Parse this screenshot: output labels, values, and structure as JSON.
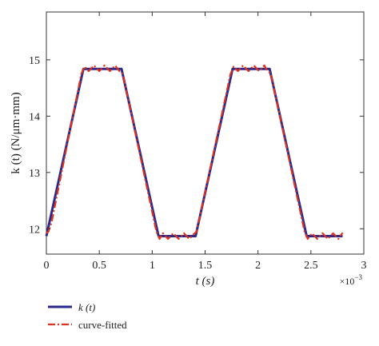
{
  "chart_data": {
    "type": "line",
    "xlabel": "t (s)",
    "ylabel": "k (t) (N/μm·mm)",
    "x_exponent_label": "×10",
    "x_exponent_power": "−3",
    "xlim": [
      0,
      3
    ],
    "ylim": [
      11.55,
      15.85
    ],
    "x_ticks": [
      0,
      0.5,
      1,
      1.5,
      2,
      2.5,
      3
    ],
    "x_tick_labels": [
      "0",
      "0.5",
      "1",
      "1.5",
      "2",
      "2.5",
      "3"
    ],
    "y_ticks": [
      12,
      13,
      14,
      15
    ],
    "y_tick_labels": [
      "12",
      "13",
      "14",
      "15"
    ],
    "grid": false,
    "legend_position": "bottom-left, below plot",
    "series": [
      {
        "name": "k (t)",
        "color": "#2b2a8c",
        "style": "solid",
        "x": [
          0,
          0.35,
          0.71,
          1.06,
          1.41,
          1.76,
          2.11,
          2.46,
          2.8
        ],
        "y": [
          11.87,
          14.84,
          14.84,
          11.87,
          11.87,
          14.84,
          14.84,
          11.87,
          11.87
        ]
      },
      {
        "name": "curve-fitted",
        "color": "#e0301e",
        "style": "dash-dot",
        "x": [
          0,
          0.02,
          0.05,
          0.33,
          0.36,
          0.4,
          0.45,
          0.5,
          0.55,
          0.6,
          0.65,
          0.69,
          0.72,
          1.04,
          1.07,
          1.1,
          1.15,
          1.2,
          1.25,
          1.3,
          1.35,
          1.39,
          1.42,
          1.74,
          1.77,
          1.81,
          1.86,
          1.91,
          1.96,
          2.01,
          2.06,
          2.09,
          2.12,
          2.44,
          2.47,
          2.51,
          2.56,
          2.61,
          2.66,
          2.71,
          2.76,
          2.8
        ],
        "y": [
          11.92,
          11.95,
          12.12,
          14.75,
          14.88,
          14.8,
          14.9,
          14.8,
          14.9,
          14.8,
          14.9,
          14.8,
          14.76,
          11.95,
          11.82,
          11.92,
          11.82,
          11.92,
          11.82,
          11.92,
          11.82,
          11.9,
          11.95,
          14.75,
          14.88,
          14.8,
          14.9,
          14.8,
          14.9,
          14.8,
          14.9,
          14.8,
          14.76,
          11.95,
          11.82,
          11.92,
          11.82,
          11.92,
          11.82,
          11.92,
          11.82,
          11.93
        ]
      }
    ]
  }
}
